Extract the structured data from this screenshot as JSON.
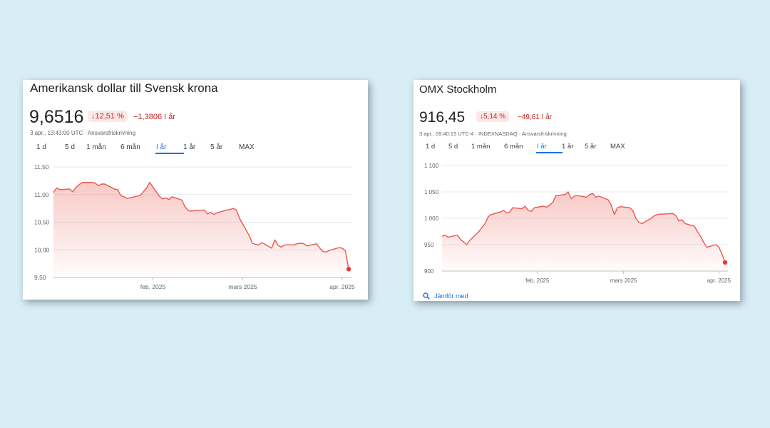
{
  "usd_card": {
    "title": "Amerikansk dollar till Svensk krona",
    "price": "9,6516",
    "change_pct": "↓12,51 %",
    "change_abs": "−1,3806 I år",
    "meta": "3 apr., 13:43:00 UTC · Ansvarsfriskrivning",
    "tabs": [
      "1 d",
      "5 d",
      "1 mån",
      "6 mån",
      "I år",
      "1 år",
      "5 år",
      "MAX"
    ],
    "active_tab": "I år",
    "y_ticks": [
      "11,50",
      "11,00",
      "10,50",
      "10,00",
      "9,50"
    ],
    "x_ticks": [
      "feb. 2025",
      "mars 2025",
      "apr. 2025"
    ]
  },
  "omx_card": {
    "title": "OMX Stockholm",
    "price": "916,45",
    "change_pct": "↓5,14 %",
    "change_abs": "−49,61 I år",
    "meta": "3 apr., 09:40:15 UTC-4 · INDEXNASDAQ · Ansvarsfriskrivning",
    "tabs": [
      "1 d",
      "5 d",
      "1 mån",
      "6 mån",
      "I år",
      "1 år",
      "5 år",
      "MAX"
    ],
    "active_tab": "I år",
    "y_ticks": [
      "1 100",
      "1 050",
      "1 000",
      "950",
      "900"
    ],
    "x_ticks": [
      "feb. 2025",
      "mars 2025",
      "apr. 2025"
    ],
    "compare_label": "Jämför med"
  },
  "colors": {
    "background": "#d7eef7",
    "line": "#e8584f",
    "negative": "#c5221f",
    "accent": "#1a73e8"
  },
  "chart_data": [
    {
      "type": "area",
      "title": "Amerikansk dollar till Svensk krona",
      "x": [
        "2025-01-01",
        "2025-01-02",
        "2025-01-03",
        "2025-01-06",
        "2025-01-07",
        "2025-01-08",
        "2025-01-09",
        "2025-01-10",
        "2025-01-13",
        "2025-01-14",
        "2025-01-15",
        "2025-01-16",
        "2025-01-17",
        "2025-01-20",
        "2025-01-21",
        "2025-01-22",
        "2025-01-23",
        "2025-01-24",
        "2025-01-27",
        "2025-01-28",
        "2025-01-29",
        "2025-01-30",
        "2025-01-31",
        "2025-02-03",
        "2025-02-04",
        "2025-02-05",
        "2025-02-06",
        "2025-02-07",
        "2025-02-10",
        "2025-02-11",
        "2025-02-12",
        "2025-02-13",
        "2025-02-14",
        "2025-02-17",
        "2025-02-18",
        "2025-02-19",
        "2025-02-20",
        "2025-02-21",
        "2025-02-24",
        "2025-02-25",
        "2025-02-26",
        "2025-02-27",
        "2025-02-28",
        "2025-03-03",
        "2025-03-04",
        "2025-03-05",
        "2025-03-06",
        "2025-03-07",
        "2025-03-10",
        "2025-03-11",
        "2025-03-12",
        "2025-03-13",
        "2025-03-14",
        "2025-03-17",
        "2025-03-18",
        "2025-03-19",
        "2025-03-20",
        "2025-03-21",
        "2025-03-24",
        "2025-03-25",
        "2025-03-26",
        "2025-03-27",
        "2025-03-28",
        "2025-03-31",
        "2025-04-01",
        "2025-04-02",
        "2025-04-03"
      ],
      "series": [
        {
          "values": [
            11.04,
            11.12,
            11.09,
            11.1,
            11.05,
            11.13,
            11.18,
            11.22,
            11.22,
            11.21,
            11.16,
            11.19,
            11.19,
            11.1,
            11.09,
            10.98,
            10.96,
            10.93,
            10.97,
            10.98,
            11.05,
            11.12,
            11.22,
            10.97,
            10.92,
            10.94,
            10.91,
            10.96,
            10.9,
            10.78,
            10.71,
            10.7,
            10.71,
            10.72,
            10.65,
            10.68,
            10.64,
            10.67,
            10.72,
            10.73,
            10.75,
            10.72,
            10.57,
            10.26,
            10.12,
            10.1,
            10.09,
            10.13,
            10.03,
            10.18,
            10.08,
            10.05,
            10.09,
            10.09,
            10.11,
            10.12,
            10.11,
            10.07,
            10.11,
            10.03,
            9.97,
            9.96,
            9.99,
            10.04,
            10.03,
            9.98,
            9.6516
          ]
        }
      ],
      "ylim": [
        9.5,
        11.5
      ],
      "grid": true
    },
    {
      "type": "area",
      "title": "OMX Stockholm",
      "x": [
        "2025-01-01",
        "2025-01-02",
        "2025-01-03",
        "2025-01-06",
        "2025-01-07",
        "2025-01-08",
        "2025-01-09",
        "2025-01-10",
        "2025-01-13",
        "2025-01-14",
        "2025-01-15",
        "2025-01-16",
        "2025-01-17",
        "2025-01-20",
        "2025-01-21",
        "2025-01-22",
        "2025-01-23",
        "2025-01-24",
        "2025-01-27",
        "2025-01-28",
        "2025-01-29",
        "2025-01-30",
        "2025-01-31",
        "2025-02-03",
        "2025-02-04",
        "2025-02-05",
        "2025-02-06",
        "2025-02-07",
        "2025-02-10",
        "2025-02-11",
        "2025-02-12",
        "2025-02-13",
        "2025-02-14",
        "2025-02-17",
        "2025-02-18",
        "2025-02-19",
        "2025-02-20",
        "2025-02-21",
        "2025-02-24",
        "2025-02-25",
        "2025-02-26",
        "2025-02-27",
        "2025-02-28",
        "2025-03-03",
        "2025-03-04",
        "2025-03-05",
        "2025-03-06",
        "2025-03-07",
        "2025-03-10",
        "2025-03-11",
        "2025-03-12",
        "2025-03-13",
        "2025-03-14",
        "2025-03-17",
        "2025-03-18",
        "2025-03-19",
        "2025-03-20",
        "2025-03-21",
        "2025-03-24",
        "2025-03-25",
        "2025-03-26",
        "2025-03-27",
        "2025-03-28",
        "2025-03-31",
        "2025-04-01",
        "2025-04-02",
        "2025-04-03"
      ],
      "series": [
        {
          "values": [
            966,
            968,
            964,
            968,
            960,
            955,
            950,
            958,
            975,
            983,
            990,
            1003,
            1007,
            1012,
            1015,
            1010,
            1012,
            1020,
            1018,
            1023,
            1015,
            1013,
            1020,
            1023,
            1021,
            1025,
            1030,
            1043,
            1045,
            1050,
            1037,
            1042,
            1043,
            1040,
            1045,
            1047,
            1040,
            1042,
            1035,
            1025,
            1007,
            1020,
            1022,
            1020,
            1015,
            1000,
            992,
            990,
            1000,
            1005,
            1007,
            1008,
            1008,
            1009,
            1005,
            995,
            997,
            990,
            985,
            975,
            966,
            955,
            945,
            950,
            945,
            932,
            916.45
          ]
        }
      ],
      "ylim": [
        900,
        1100
      ],
      "grid": true
    }
  ]
}
